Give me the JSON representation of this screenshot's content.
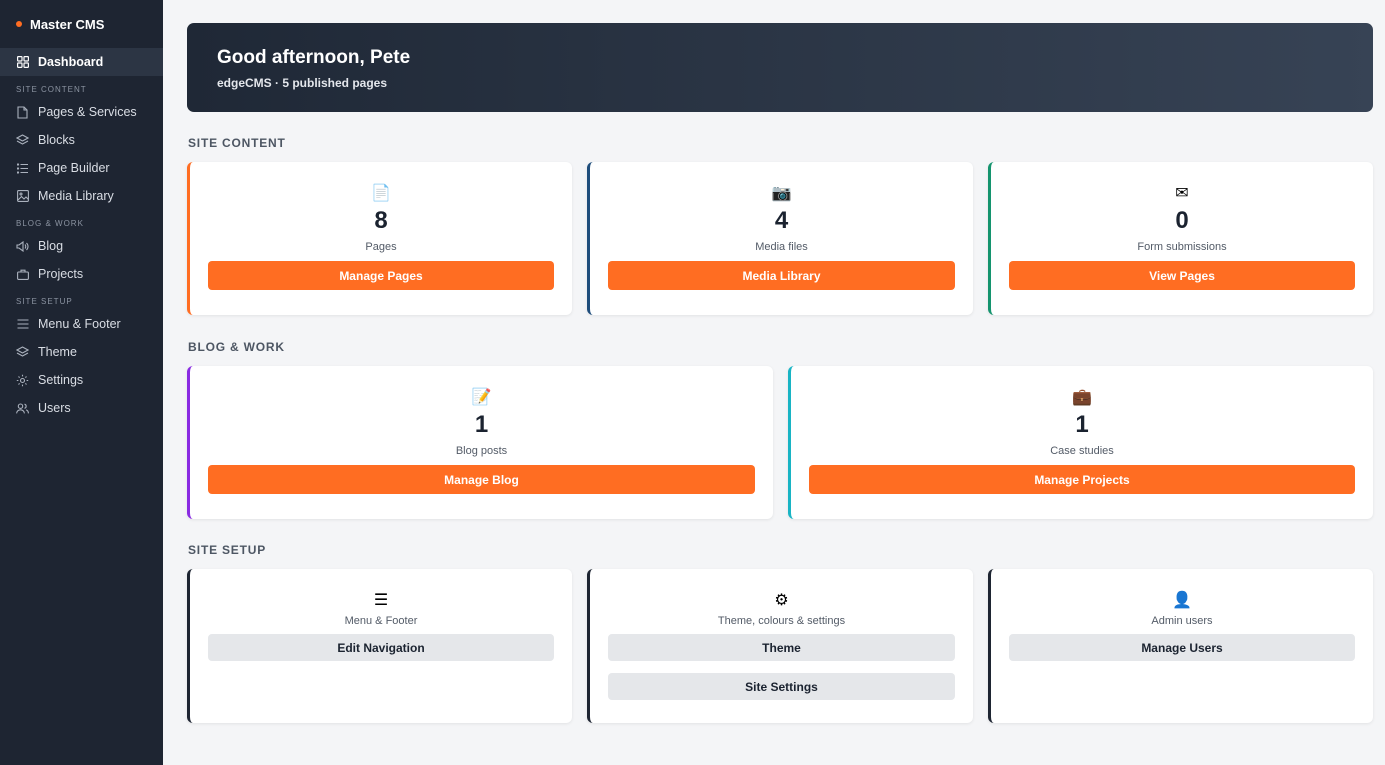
{
  "sidebar": {
    "brand": "Master CMS",
    "dashboard": "Dashboard",
    "sections": {
      "site_content": "SITE CONTENT",
      "blog_work": "BLOG & WORK",
      "site_setup": "SITE SETUP"
    },
    "items": {
      "pages_services": "Pages & Services",
      "blocks": "Blocks",
      "page_builder": "Page Builder",
      "media_library": "Media Library",
      "blog": "Blog",
      "projects": "Projects",
      "menu_footer": "Menu & Footer",
      "theme": "Theme",
      "settings": "Settings",
      "users": "Users"
    }
  },
  "hero": {
    "greeting": "Good afternoon, Pete",
    "subtitle": "edgeCMS · 5 published pages"
  },
  "site_content": {
    "title": "SITE CONTENT",
    "cards": [
      {
        "icon": "📄",
        "count": "8",
        "label": "Pages",
        "button": "Manage Pages",
        "accent": "#ff6d22"
      },
      {
        "icon": "📷",
        "count": "4",
        "label": "Media files",
        "button": "Media Library",
        "accent": "#1e4d7b"
      },
      {
        "icon": "✉",
        "count": "0",
        "label": "Form submissions",
        "button": "View Pages",
        "accent": "#14946e"
      }
    ]
  },
  "blog_work": {
    "title": "BLOG & WORK",
    "cards": [
      {
        "icon": "📝",
        "count": "1",
        "label": "Blog posts",
        "button": "Manage Blog",
        "accent": "#8a2be2"
      },
      {
        "icon": "💼",
        "count": "1",
        "label": "Case studies",
        "button": "Manage Projects",
        "accent": "#18b4c4"
      }
    ]
  },
  "site_setup": {
    "title": "SITE SETUP",
    "cards": [
      {
        "icon": "☰",
        "label": "Menu & Footer",
        "buttons": [
          "Edit Navigation"
        ]
      },
      {
        "icon": "⚙",
        "label": "Theme, colours & settings",
        "buttons": [
          "Theme",
          "Site Settings"
        ]
      },
      {
        "icon": "👤",
        "label": "Admin users",
        "buttons": [
          "Manage Users"
        ]
      }
    ]
  }
}
